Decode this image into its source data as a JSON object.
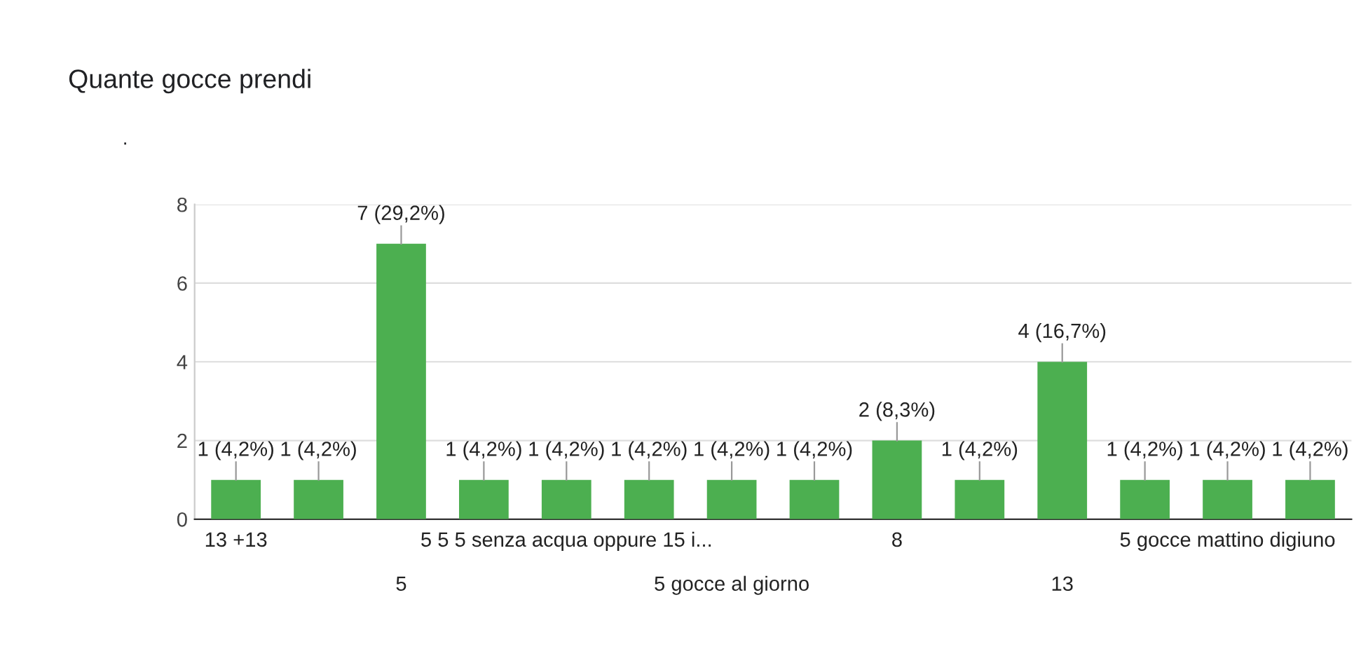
{
  "chart_data": {
    "type": "bar",
    "title": "Quante gocce prendi",
    "subtitle": ".",
    "categories": [
      "13 +13",
      null,
      "5",
      null,
      "5 5 5 senza acqua oppure 15 i...",
      null,
      "5 gocce al giorno",
      null,
      "8",
      null,
      "13",
      null,
      "5 gocce mattino digiuno",
      null
    ],
    "values": [
      1,
      1,
      7,
      1,
      1,
      1,
      1,
      1,
      2,
      1,
      4,
      1,
      1,
      1
    ],
    "value_labels": [
      "1 (4,2%)",
      "1 (4,2%)",
      "7 (29,2%)",
      "1 (4,2%)",
      "1 (4,2%)",
      "1 (4,2%)",
      "1 (4,2%)",
      "1 (4,2%)",
      "2 (8,3%)",
      "1 (4,2%)",
      "4 (16,7%)",
      "1 (4,2%)",
      "1 (4,2%)",
      "1 (4,2%)"
    ],
    "color": "#4caf50",
    "ylim": [
      0,
      8
    ],
    "yticks": [
      0,
      2,
      4,
      6,
      8
    ],
    "grid": "y",
    "legend": false
  }
}
